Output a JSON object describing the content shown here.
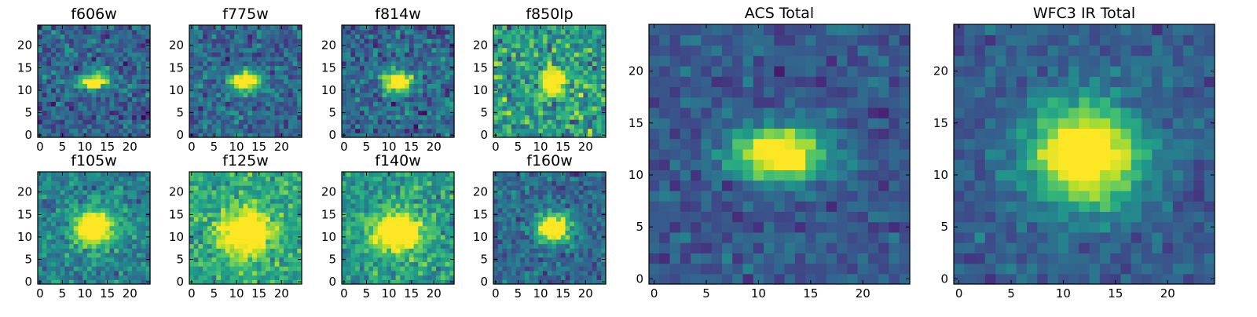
{
  "chart_data": {
    "type": "heatmap",
    "colormap": "viridis",
    "grid_size": 25,
    "panels": [
      {
        "title": "f606w",
        "xlim": [
          0,
          24
        ],
        "ylim": [
          0,
          24
        ],
        "xticks": [
          0,
          5,
          10,
          15,
          20
        ],
        "yticks": [
          0,
          5,
          10,
          15,
          20
        ],
        "center": [
          12,
          12
        ],
        "sigma_x": 2.2,
        "sigma_y": 1.3,
        "background": 0.32,
        "peak": 0.95,
        "noise": 0.22,
        "seed": 11
      },
      {
        "title": "f775w",
        "xlim": [
          0,
          24
        ],
        "ylim": [
          0,
          24
        ],
        "xticks": [
          0,
          5,
          10,
          15,
          20
        ],
        "yticks": [
          0,
          5,
          10,
          15,
          20
        ],
        "center": [
          12,
          12
        ],
        "sigma_x": 2.3,
        "sigma_y": 1.4,
        "background": 0.34,
        "peak": 0.95,
        "noise": 0.22,
        "seed": 23
      },
      {
        "title": "f814w",
        "xlim": [
          0,
          24
        ],
        "ylim": [
          0,
          24
        ],
        "xticks": [
          0,
          5,
          10,
          15,
          20
        ],
        "yticks": [
          0,
          5,
          10,
          15,
          20
        ],
        "center": [
          12,
          12
        ],
        "sigma_x": 2.3,
        "sigma_y": 1.6,
        "background": 0.34,
        "peak": 0.92,
        "noise": 0.24,
        "seed": 37
      },
      {
        "title": "f850lp",
        "xlim": [
          0,
          24
        ],
        "ylim": [
          0,
          24
        ],
        "xticks": [
          0,
          5,
          10,
          15,
          20
        ],
        "yticks": [
          0,
          5,
          10,
          15,
          20
        ],
        "center": [
          13,
          12
        ],
        "sigma_x": 1.6,
        "sigma_y": 2.0,
        "background": 0.55,
        "peak": 0.95,
        "noise": 0.32,
        "seed": 41
      },
      {
        "title": "f105w",
        "xlim": [
          0,
          24
        ],
        "ylim": [
          0,
          24
        ],
        "xticks": [
          0,
          5,
          10,
          15,
          20
        ],
        "yticks": [
          0,
          5,
          10,
          15,
          20
        ],
        "center": [
          12,
          12
        ],
        "sigma_x": 3.0,
        "sigma_y": 2.6,
        "background": 0.45,
        "peak": 0.95,
        "noise": 0.2,
        "seed": 53
      },
      {
        "title": "f125w",
        "xlim": [
          0,
          24
        ],
        "ylim": [
          0,
          24
        ],
        "xticks": [
          0,
          5,
          10,
          15,
          20
        ],
        "yticks": [
          0,
          5,
          10,
          15,
          20
        ],
        "center": [
          12,
          11
        ],
        "sigma_x": 3.6,
        "sigma_y": 3.2,
        "background": 0.6,
        "peak": 0.95,
        "noise": 0.22,
        "seed": 67
      },
      {
        "title": "f140w",
        "xlim": [
          0,
          24
        ],
        "ylim": [
          0,
          24
        ],
        "xticks": [
          0,
          5,
          10,
          15,
          20
        ],
        "yticks": [
          0,
          5,
          10,
          15,
          20
        ],
        "center": [
          12,
          11
        ],
        "sigma_x": 3.6,
        "sigma_y": 2.8,
        "background": 0.55,
        "peak": 0.95,
        "noise": 0.22,
        "seed": 79
      },
      {
        "title": "f160w",
        "xlim": [
          0,
          24
        ],
        "ylim": [
          0,
          24
        ],
        "xticks": [
          0,
          5,
          10,
          15,
          20
        ],
        "yticks": [
          0,
          5,
          10,
          15,
          20
        ],
        "center": [
          13,
          12
        ],
        "sigma_x": 2.6,
        "sigma_y": 2.2,
        "background": 0.35,
        "peak": 0.95,
        "noise": 0.2,
        "seed": 89
      },
      {
        "title": "ACS Total",
        "xlim": [
          0,
          24
        ],
        "ylim": [
          0,
          24
        ],
        "xticks": [
          0,
          5,
          10,
          15,
          20
        ],
        "yticks": [
          0,
          5,
          10,
          15,
          20
        ],
        "center": [
          12,
          12
        ],
        "sigma_x": 3.0,
        "sigma_y": 1.7,
        "background": 0.28,
        "peak": 0.96,
        "noise": 0.14,
        "seed": 97
      },
      {
        "title": "WFC3 IR Total",
        "xlim": [
          0,
          24
        ],
        "ylim": [
          0,
          24
        ],
        "xticks": [
          0,
          5,
          10,
          15,
          20
        ],
        "yticks": [
          0,
          5,
          10,
          15,
          20
        ],
        "center": [
          12,
          12
        ],
        "sigma_x": 3.6,
        "sigma_y": 3.3,
        "background": 0.3,
        "peak": 0.96,
        "noise": 0.13,
        "seed": 103
      }
    ]
  }
}
